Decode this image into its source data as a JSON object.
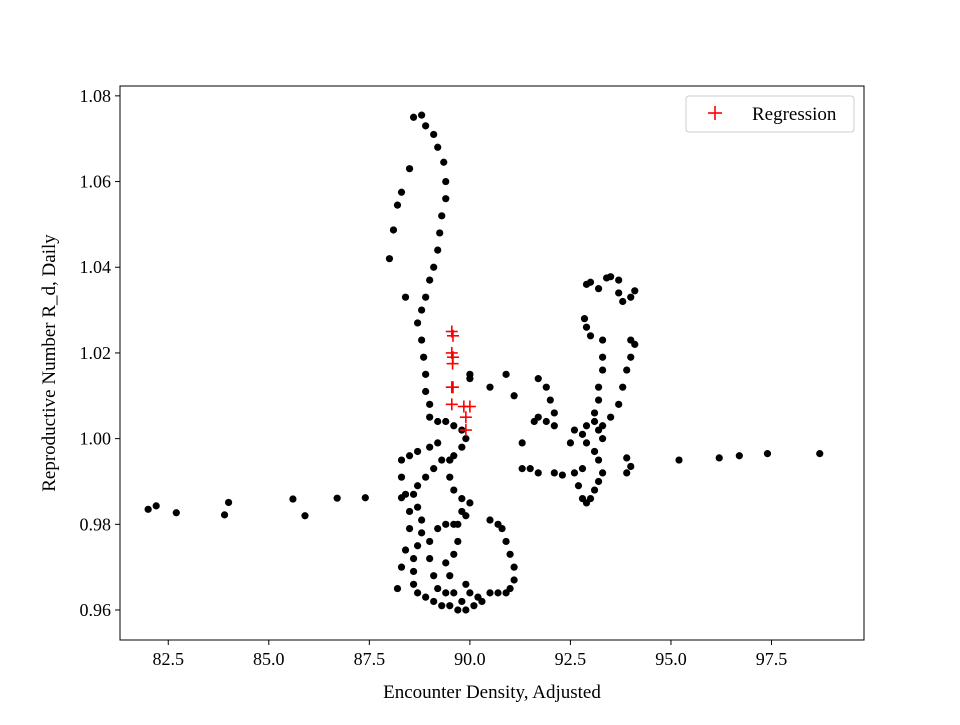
{
  "chart_data": {
    "type": "scatter",
    "title": "",
    "xlabel": "Encounter Density, Adjusted",
    "ylabel": "Reproductive Number R_d, Daily",
    "xlim": [
      81.3,
      99.8
    ],
    "ylim": [
      0.953,
      1.0823
    ],
    "xticks": [
      82.5,
      85.0,
      87.5,
      90.0,
      92.5,
      95.0,
      97.5
    ],
    "xtick_labels": [
      "82.5",
      "85.0",
      "87.5",
      "90.0",
      "92.5",
      "95.0",
      "97.5"
    ],
    "yticks": [
      0.96,
      0.98,
      1.0,
      1.02,
      1.04,
      1.06,
      1.08
    ],
    "ytick_labels": [
      "0.96",
      "0.98",
      "1.00",
      "1.02",
      "1.04",
      "1.06",
      "1.08"
    ],
    "grid": false,
    "legend_position": "upper right",
    "series": [
      {
        "marker": "dot",
        "color": "#000000",
        "points": [
          [
            82.0,
            0.9835
          ],
          [
            82.2,
            0.9843
          ],
          [
            82.7,
            0.9827
          ],
          [
            83.9,
            0.9822
          ],
          [
            84.0,
            0.9851
          ],
          [
            85.6,
            0.9859
          ],
          [
            85.9,
            0.982
          ],
          [
            86.7,
            0.9861
          ],
          [
            87.4,
            0.9862
          ],
          [
            88.3,
            0.9862
          ],
          [
            88.0,
            1.042
          ],
          [
            88.1,
            1.0487
          ],
          [
            88.2,
            1.0545
          ],
          [
            88.3,
            1.0575
          ],
          [
            88.5,
            1.063
          ],
          [
            88.4,
            1.033
          ],
          [
            88.6,
            1.075
          ],
          [
            88.8,
            1.0755
          ],
          [
            88.9,
            1.073
          ],
          [
            89.1,
            1.071
          ],
          [
            89.2,
            1.068
          ],
          [
            89.35,
            1.0645
          ],
          [
            89.4,
            1.06
          ],
          [
            89.4,
            1.056
          ],
          [
            89.3,
            1.052
          ],
          [
            89.25,
            1.048
          ],
          [
            89.2,
            1.044
          ],
          [
            89.1,
            1.04
          ],
          [
            89.0,
            1.037
          ],
          [
            88.9,
            1.033
          ],
          [
            88.8,
            1.03
          ],
          [
            88.7,
            1.027
          ],
          [
            88.8,
            1.023
          ],
          [
            88.85,
            1.019
          ],
          [
            88.9,
            1.015
          ],
          [
            88.9,
            1.011
          ],
          [
            89.0,
            1.008
          ],
          [
            89.0,
            1.005
          ],
          [
            89.2,
            1.004
          ],
          [
            89.4,
            1.004
          ],
          [
            89.6,
            1.003
          ],
          [
            89.8,
            1.002
          ],
          [
            89.9,
            1.0
          ],
          [
            89.8,
            0.998
          ],
          [
            89.6,
            0.996
          ],
          [
            89.5,
            0.995
          ],
          [
            89.3,
            0.995
          ],
          [
            89.1,
            0.993
          ],
          [
            88.9,
            0.991
          ],
          [
            88.7,
            0.989
          ],
          [
            88.6,
            0.987
          ],
          [
            88.7,
            0.984
          ],
          [
            88.8,
            0.981
          ],
          [
            88.8,
            0.978
          ],
          [
            88.7,
            0.975
          ],
          [
            88.6,
            0.972
          ],
          [
            88.6,
            0.969
          ],
          [
            88.6,
            0.966
          ],
          [
            88.7,
            0.964
          ],
          [
            88.9,
            0.963
          ],
          [
            89.1,
            0.962
          ],
          [
            89.3,
            0.961
          ],
          [
            89.5,
            0.961
          ],
          [
            89.7,
            0.96
          ],
          [
            89.9,
            0.96
          ],
          [
            90.1,
            0.961
          ],
          [
            90.3,
            0.962
          ],
          [
            90.5,
            0.964
          ],
          [
            90.7,
            0.964
          ],
          [
            90.9,
            0.964
          ],
          [
            91.0,
            0.965
          ],
          [
            91.1,
            0.967
          ],
          [
            91.1,
            0.97
          ],
          [
            91.0,
            0.973
          ],
          [
            90.9,
            0.976
          ],
          [
            90.8,
            0.979
          ],
          [
            90.7,
            0.98
          ],
          [
            90.5,
            0.981
          ],
          [
            88.2,
            0.965
          ],
          [
            88.3,
            0.97
          ],
          [
            88.4,
            0.974
          ],
          [
            88.5,
            0.979
          ],
          [
            88.5,
            0.983
          ],
          [
            88.4,
            0.987
          ],
          [
            88.3,
            0.991
          ],
          [
            88.3,
            0.995
          ],
          [
            88.5,
            0.996
          ],
          [
            88.7,
            0.997
          ],
          [
            89.0,
            0.998
          ],
          [
            89.2,
            0.999
          ],
          [
            89.5,
            0.995
          ],
          [
            89.5,
            0.991
          ],
          [
            89.6,
            0.988
          ],
          [
            89.8,
            0.986
          ],
          [
            90.0,
            0.985
          ],
          [
            89.8,
            0.983
          ],
          [
            89.6,
            0.98
          ],
          [
            89.4,
            0.98
          ],
          [
            89.2,
            0.979
          ],
          [
            89.0,
            0.976
          ],
          [
            89.0,
            0.972
          ],
          [
            89.1,
            0.968
          ],
          [
            89.2,
            0.965
          ],
          [
            89.4,
            0.964
          ],
          [
            89.6,
            0.964
          ],
          [
            89.8,
            0.962
          ],
          [
            90.0,
            0.964
          ],
          [
            90.2,
            0.963
          ],
          [
            89.9,
            0.966
          ],
          [
            89.5,
            0.968
          ],
          [
            89.4,
            0.971
          ],
          [
            89.6,
            0.973
          ],
          [
            89.7,
            0.976
          ],
          [
            89.7,
            0.98
          ],
          [
            89.9,
            0.982
          ],
          [
            90.0,
            1.014
          ],
          [
            90.0,
            1.015
          ],
          [
            90.5,
            1.012
          ],
          [
            90.9,
            1.015
          ],
          [
            91.1,
            1.01
          ],
          [
            91.3,
            0.999
          ],
          [
            91.3,
            0.993
          ],
          [
            91.5,
            0.993
          ],
          [
            91.7,
            0.992
          ],
          [
            91.7,
            1.014
          ],
          [
            91.9,
            1.012
          ],
          [
            92.0,
            1.009
          ],
          [
            92.1,
            1.006
          ],
          [
            92.1,
            1.003
          ],
          [
            91.9,
            1.004
          ],
          [
            91.7,
            1.005
          ],
          [
            91.6,
            1.004
          ],
          [
            92.1,
            0.992
          ],
          [
            92.3,
            0.9915
          ],
          [
            92.6,
            0.992
          ],
          [
            92.8,
            0.993
          ],
          [
            92.7,
            0.989
          ],
          [
            92.8,
            0.986
          ],
          [
            92.9,
            0.985
          ],
          [
            93.0,
            0.986
          ],
          [
            93.1,
            0.988
          ],
          [
            93.2,
            0.99
          ],
          [
            93.3,
            0.992
          ],
          [
            93.2,
            0.995
          ],
          [
            93.1,
            0.997
          ],
          [
            92.9,
            0.999
          ],
          [
            92.8,
            1.001
          ],
          [
            92.9,
            1.003
          ],
          [
            93.1,
            1.004
          ],
          [
            93.2,
            1.002
          ],
          [
            93.3,
            1.0
          ],
          [
            92.6,
            1.002
          ],
          [
            92.5,
            0.999
          ],
          [
            93.1,
            1.006
          ],
          [
            93.2,
            1.009
          ],
          [
            93.2,
            1.012
          ],
          [
            93.3,
            1.016
          ],
          [
            93.3,
            1.019
          ],
          [
            93.3,
            1.023
          ],
          [
            93.0,
            1.024
          ],
          [
            92.9,
            1.026
          ],
          [
            92.85,
            1.028
          ],
          [
            92.9,
            1.036
          ],
          [
            93.0,
            1.0365
          ],
          [
            93.2,
            1.035
          ],
          [
            93.4,
            1.0375
          ],
          [
            93.5,
            1.0378
          ],
          [
            93.7,
            1.037
          ],
          [
            93.7,
            1.034
          ],
          [
            93.8,
            1.032
          ],
          [
            94.0,
            1.033
          ],
          [
            94.1,
            1.0345
          ],
          [
            94.0,
            1.023
          ],
          [
            94.1,
            1.022
          ],
          [
            94.0,
            1.019
          ],
          [
            93.9,
            1.016
          ],
          [
            93.8,
            1.012
          ],
          [
            93.7,
            1.008
          ],
          [
            93.5,
            1.005
          ],
          [
            93.3,
            1.003
          ],
          [
            93.9,
            0.9955
          ],
          [
            94.0,
            0.9935
          ],
          [
            93.9,
            0.992
          ],
          [
            95.2,
            0.995
          ],
          [
            96.2,
            0.9955
          ],
          [
            96.7,
            0.996
          ],
          [
            97.4,
            0.9965
          ],
          [
            98.7,
            0.9965
          ]
        ]
      },
      {
        "name": "Regression",
        "marker": "plus",
        "color": "#ff0000",
        "points": [
          [
            89.55,
            1.025
          ],
          [
            89.58,
            1.024
          ],
          [
            89.55,
            1.02
          ],
          [
            89.58,
            1.019
          ],
          [
            89.57,
            1.0175
          ],
          [
            89.55,
            1.012
          ],
          [
            89.58,
            1.012
          ],
          [
            89.55,
            1.008
          ],
          [
            89.85,
            1.0075
          ],
          [
            90.0,
            1.0075
          ],
          [
            89.9,
            1.005
          ],
          [
            89.9,
            1.002
          ]
        ]
      }
    ]
  }
}
